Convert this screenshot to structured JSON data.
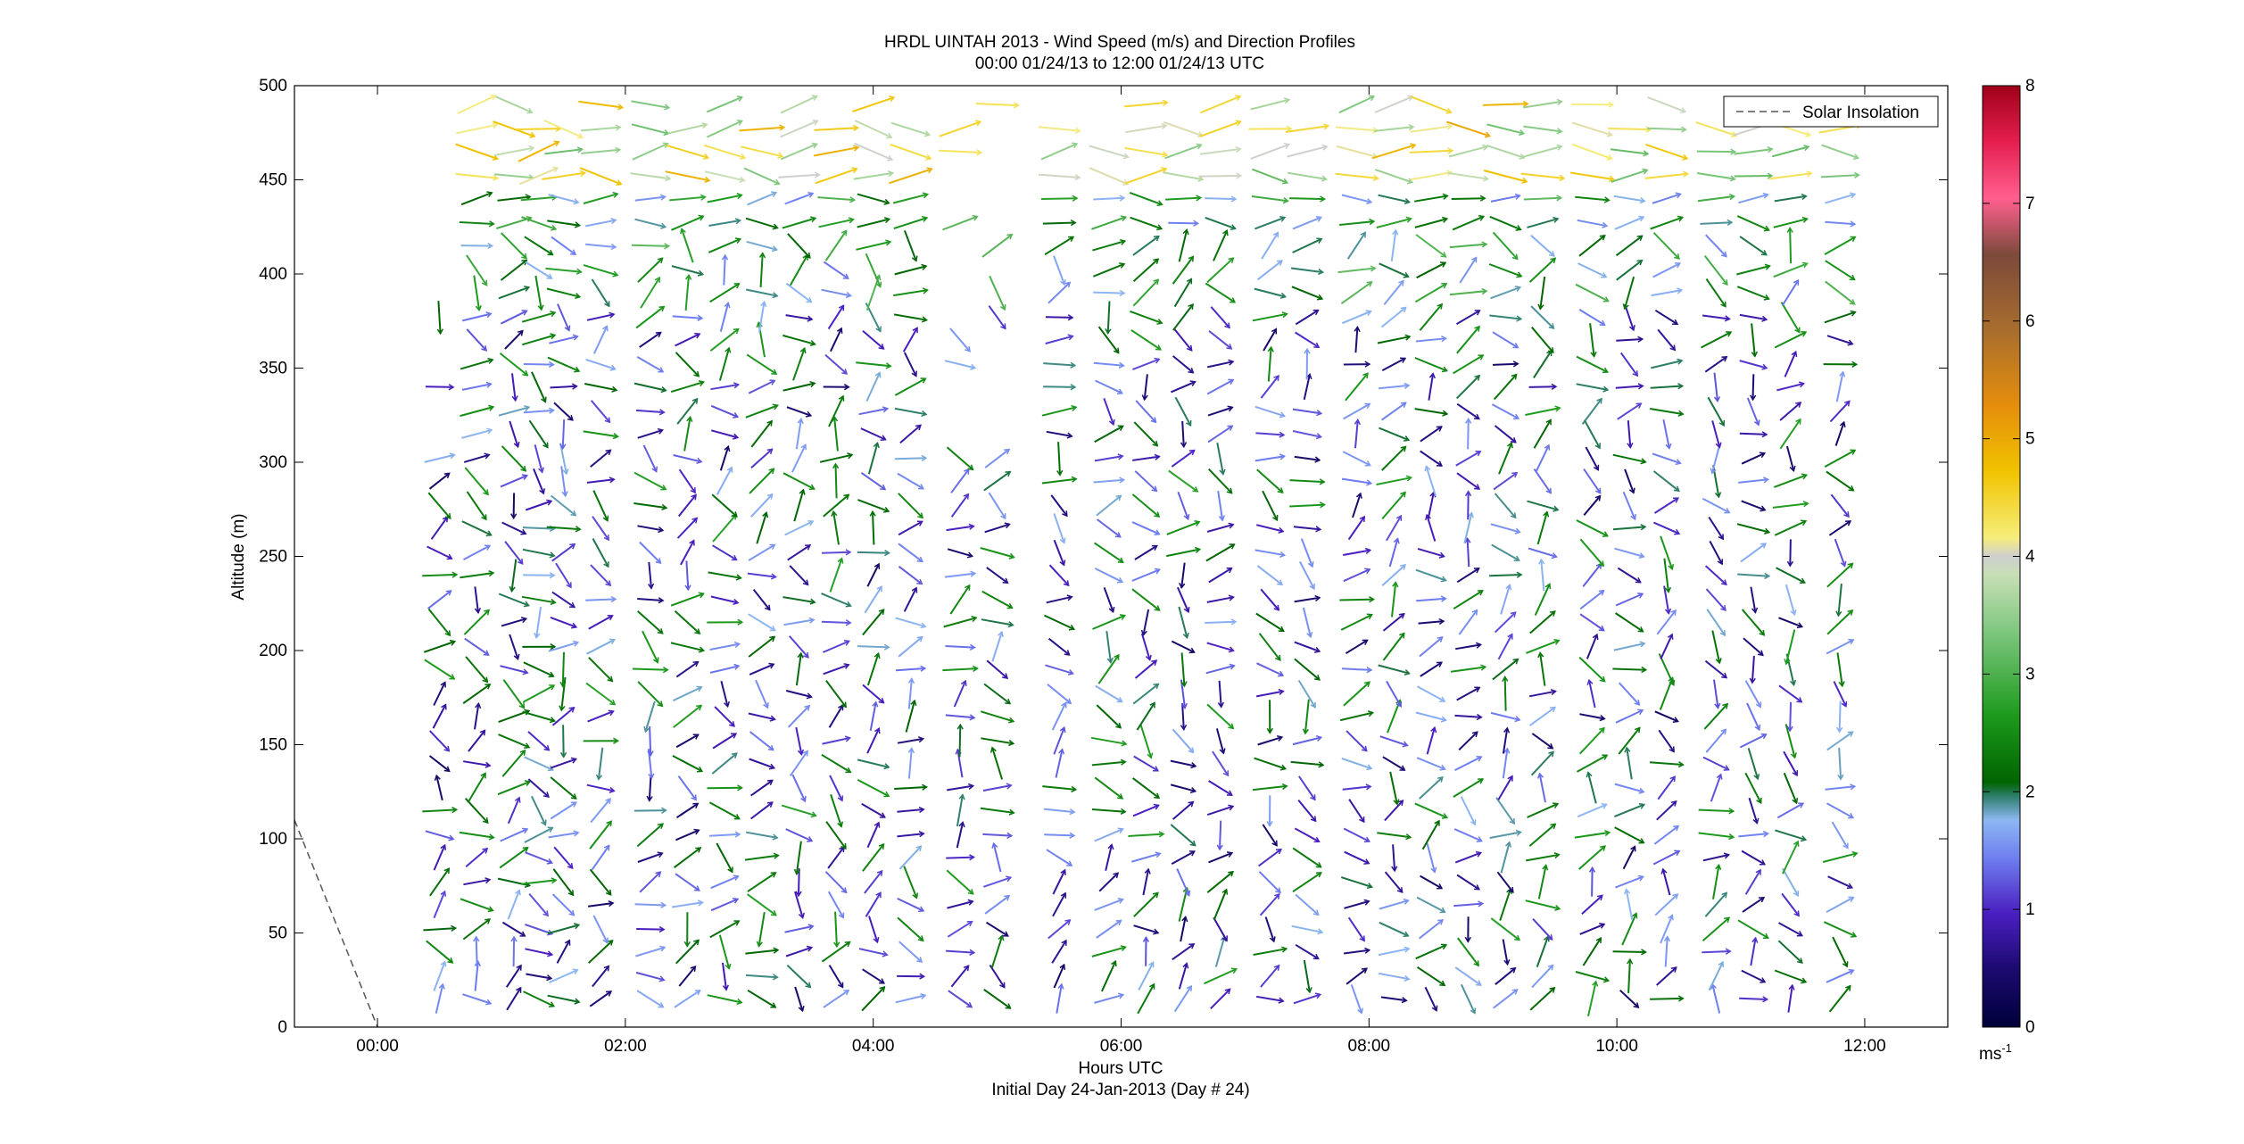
{
  "chart_data": {
    "type": "quiver",
    "title": "HRDL UINTAH 2013 - Wind Speed (m/s) and Direction Profiles",
    "subtitle": "00:00 01/24/13 to 12:00 01/24/13  UTC",
    "xlabel": "Hours UTC",
    "xlabel2": "Initial Day 24-Jan-2013 (Day # 24)",
    "ylabel": "Altitude (m)",
    "xlim": [
      -0.67,
      12.67
    ],
    "ylim": [
      0,
      500
    ],
    "x_ticks": [
      0,
      2,
      4,
      6,
      8,
      10,
      12
    ],
    "x_tick_labels": [
      "00:00",
      "02:00",
      "04:00",
      "06:00",
      "08:00",
      "10:00",
      "12:00"
    ],
    "y_ticks": [
      0,
      50,
      100,
      150,
      200,
      250,
      300,
      350,
      400,
      450,
      500
    ],
    "y_tick_labels": [
      "0",
      "50",
      "100",
      "150",
      "200",
      "250",
      "300",
      "350",
      "400",
      "450",
      "500"
    ],
    "colorbar": {
      "range": [
        0,
        8
      ],
      "ticks": [
        0,
        1,
        2,
        3,
        4,
        5,
        6,
        7,
        8
      ],
      "tick_labels": [
        "0",
        "1",
        "2",
        "3",
        "4",
        "5",
        "6",
        "7",
        "8"
      ],
      "unit": "ms",
      "unit_exp": "-1"
    },
    "legend": {
      "position": "top-right",
      "entries": [
        "Solar Insolation"
      ]
    },
    "solar_insolation": {
      "x": [
        -0.67,
        0.0
      ],
      "y": [
        110,
        0
      ]
    },
    "vector_times": [
      0.5,
      0.8,
      1.1,
      1.3,
      1.5,
      1.8,
      2.2,
      2.5,
      2.8,
      3.1,
      3.4,
      3.7,
      4.0,
      4.3,
      4.7,
      5.0,
      5.5,
      5.9,
      6.2,
      6.5,
      6.8,
      7.2,
      7.5,
      7.9,
      8.2,
      8.5,
      8.8,
      9.1,
      9.4,
      9.8,
      10.1,
      10.4,
      10.8,
      11.1,
      11.4,
      11.8
    ],
    "vector_altitudes": [
      15,
      27,
      40,
      52,
      65,
      77,
      90,
      102,
      115,
      127,
      140,
      152,
      165,
      177,
      190,
      202,
      215,
      227,
      240,
      252,
      265,
      277,
      290,
      302,
      315,
      327,
      340,
      352,
      365,
      377,
      390,
      402,
      415,
      427,
      440,
      452,
      465,
      477,
      490
    ]
  }
}
